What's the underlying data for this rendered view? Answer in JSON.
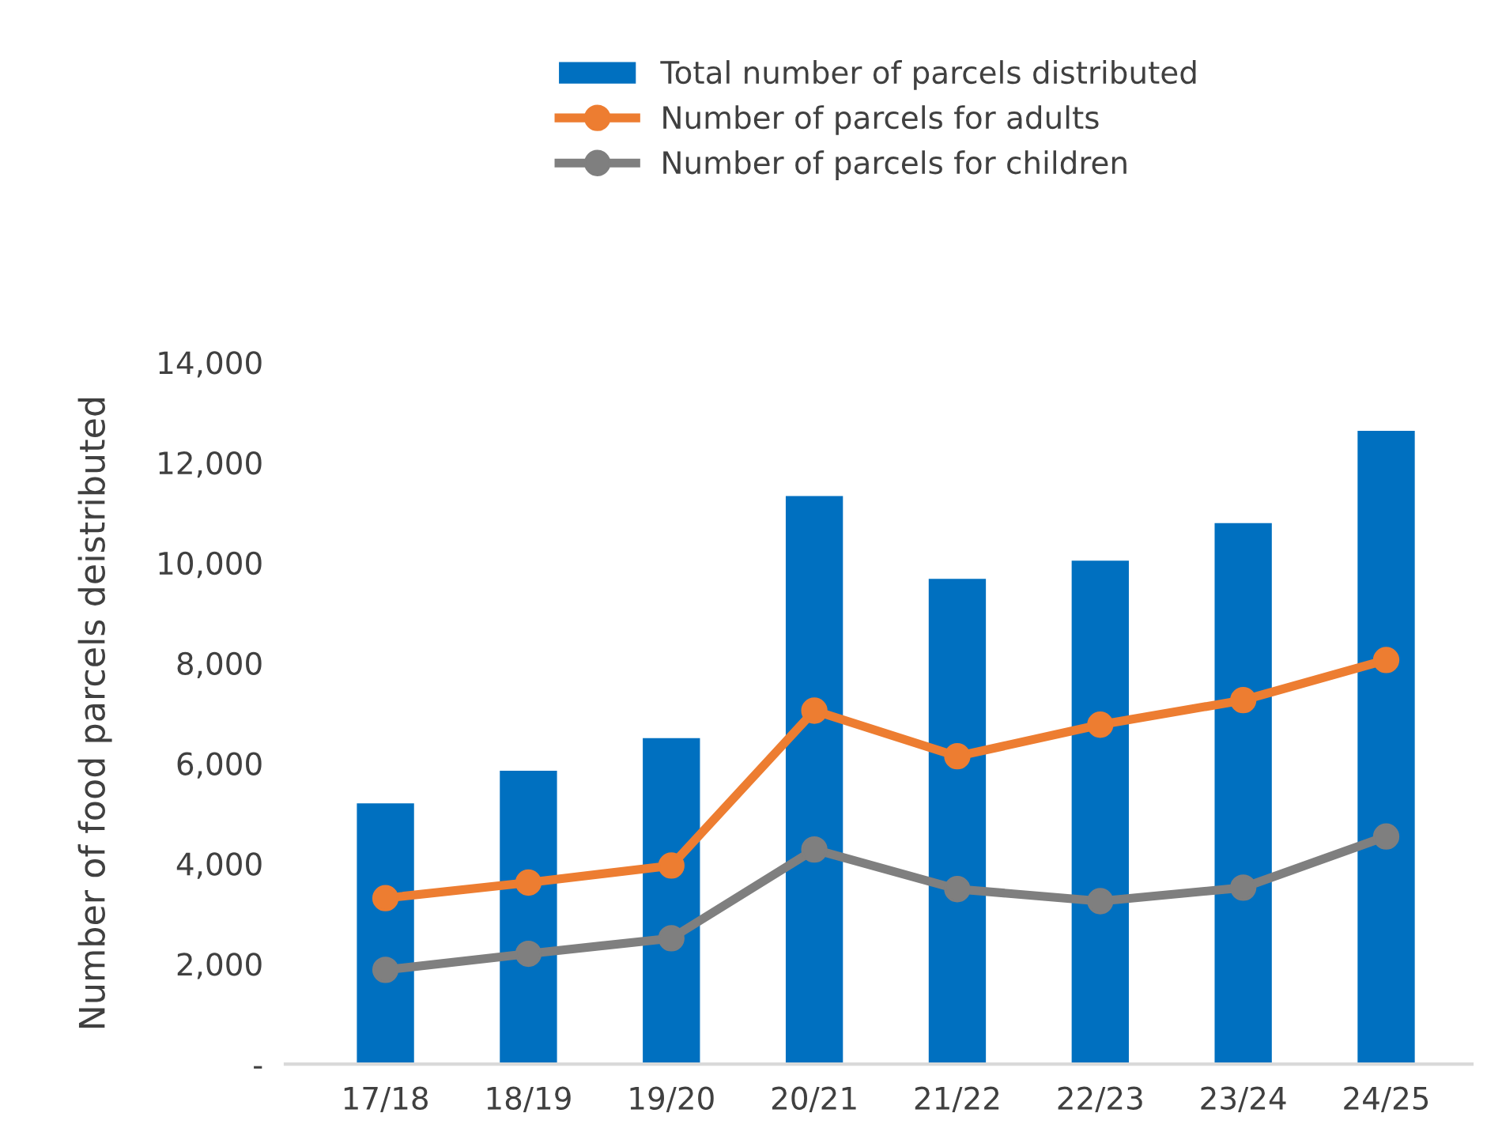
{
  "chart_data": {
    "type": "bar",
    "categories": [
      "17/18",
      "18/19",
      "19/20",
      "20/21",
      "21/22",
      "22/23",
      "23/24",
      "24/25"
    ],
    "ylabel": "Number of food parcels deistributed",
    "ylim": [
      0,
      14000
    ],
    "yticks": [
      {
        "value": 0,
        "label": "-"
      },
      {
        "value": 2000,
        "label": "2,000"
      },
      {
        "value": 4000,
        "label": "4,000"
      },
      {
        "value": 6000,
        "label": "6,000"
      },
      {
        "value": 8000,
        "label": "8,000"
      },
      {
        "value": 10000,
        "label": "10,000"
      },
      {
        "value": 12000,
        "label": "12,000"
      },
      {
        "value": 14000,
        "label": "14,000"
      }
    ],
    "grid": false,
    "legend": "top",
    "marker": "circle",
    "series": [
      {
        "name": "Total number of parcels distributed",
        "color": "#0070c0",
        "values": [
          5200,
          5850,
          6500,
          11330,
          9680,
          10040,
          10790,
          12630
        ]
      },
      {
        "name": "Number of parcels for adults",
        "type": "line",
        "color": "#ed7d31",
        "values": [
          3310,
          3620,
          3960,
          7050,
          6140,
          6770,
          7260,
          8060
        ]
      },
      {
        "name": "Number of parcels for children",
        "type": "line",
        "color": "#7f7f7f",
        "values": [
          1880,
          2200,
          2510,
          4280,
          3490,
          3250,
          3520,
          4540
        ]
      }
    ]
  }
}
